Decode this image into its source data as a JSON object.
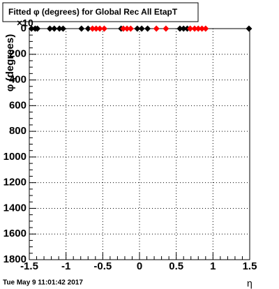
{
  "chart_data": {
    "type": "scatter",
    "title": "Fitted φ (degrees) for Global Rec All EtapT",
    "x_label": "η",
    "y_label": "φ (degrees)",
    "exponent_label": "×10",
    "timestamp": "Tue May  9 11:01:42 2017",
    "xlim": [
      -1.5,
      1.5
    ],
    "xticks": [
      -1.5,
      -1,
      -0.5,
      0,
      0.5,
      1,
      1.5
    ],
    "ylim": [
      1800,
      0
    ],
    "yticks": [
      0,
      200,
      400,
      600,
      800,
      1000,
      1200,
      1400,
      1600,
      1800
    ],
    "grid": true,
    "series": [
      {
        "color": "#000000",
        "x": [
          -1.47,
          -1.42,
          -1.39,
          -1.22,
          -1.16,
          -1.09,
          -1.04,
          -0.79,
          -0.7,
          -0.25,
          -0.03,
          0.03,
          0.11,
          0.55,
          0.6,
          0.65,
          1.49
        ],
        "values": [
          0,
          0,
          0,
          0,
          0,
          0,
          0,
          0,
          0,
          0,
          0,
          0,
          0,
          0,
          0,
          0,
          0
        ]
      },
      {
        "color": "#ff0000",
        "x": [
          -0.64,
          -0.59,
          -0.54,
          -0.48,
          -0.22,
          -0.17,
          -0.12,
          0.23,
          0.36,
          0.69,
          0.75,
          0.8,
          0.85,
          0.9
        ],
        "values": [
          0,
          0,
          0,
          0,
          0,
          0,
          0,
          0,
          0,
          0,
          0,
          0,
          0,
          0
        ]
      }
    ]
  }
}
